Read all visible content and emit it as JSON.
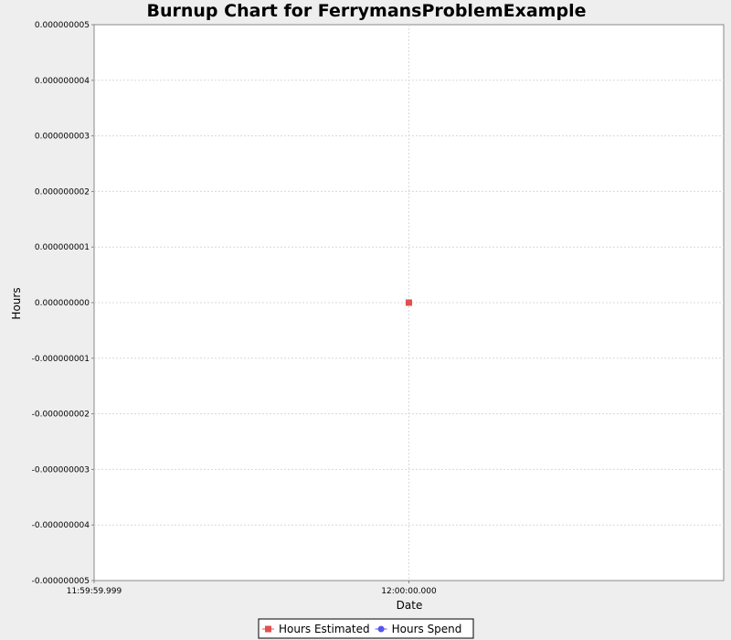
{
  "chart_data": {
    "type": "line",
    "title": "Burnup Chart for FerrymansProblemExample",
    "xlabel": "Date",
    "ylabel": "Hours",
    "x_ticks": [
      "11:59:59.999",
      "12:00:00.000"
    ],
    "x_range": [
      "11:59:59.999",
      "12:00:00.001"
    ],
    "y_ticks": [
      "0.000000005",
      "0.000000004",
      "0.000000003",
      "0.000000002",
      "0.000000001",
      "0.000000000",
      "-0.000000001",
      "-0.000000002",
      "-0.000000003",
      "-0.000000004",
      "-0.000000005"
    ],
    "ylim": [
      -5e-09,
      5e-09
    ],
    "grid": true,
    "legend_position": "bottom",
    "series": [
      {
        "name": "Hours Estimated",
        "color": "#e0504f",
        "marker": "square",
        "points": [
          {
            "x": "12:00:00.000",
            "y": 0
          }
        ]
      },
      {
        "name": "Hours Spend",
        "color": "#5555ee",
        "marker": "circle",
        "points": []
      }
    ]
  }
}
